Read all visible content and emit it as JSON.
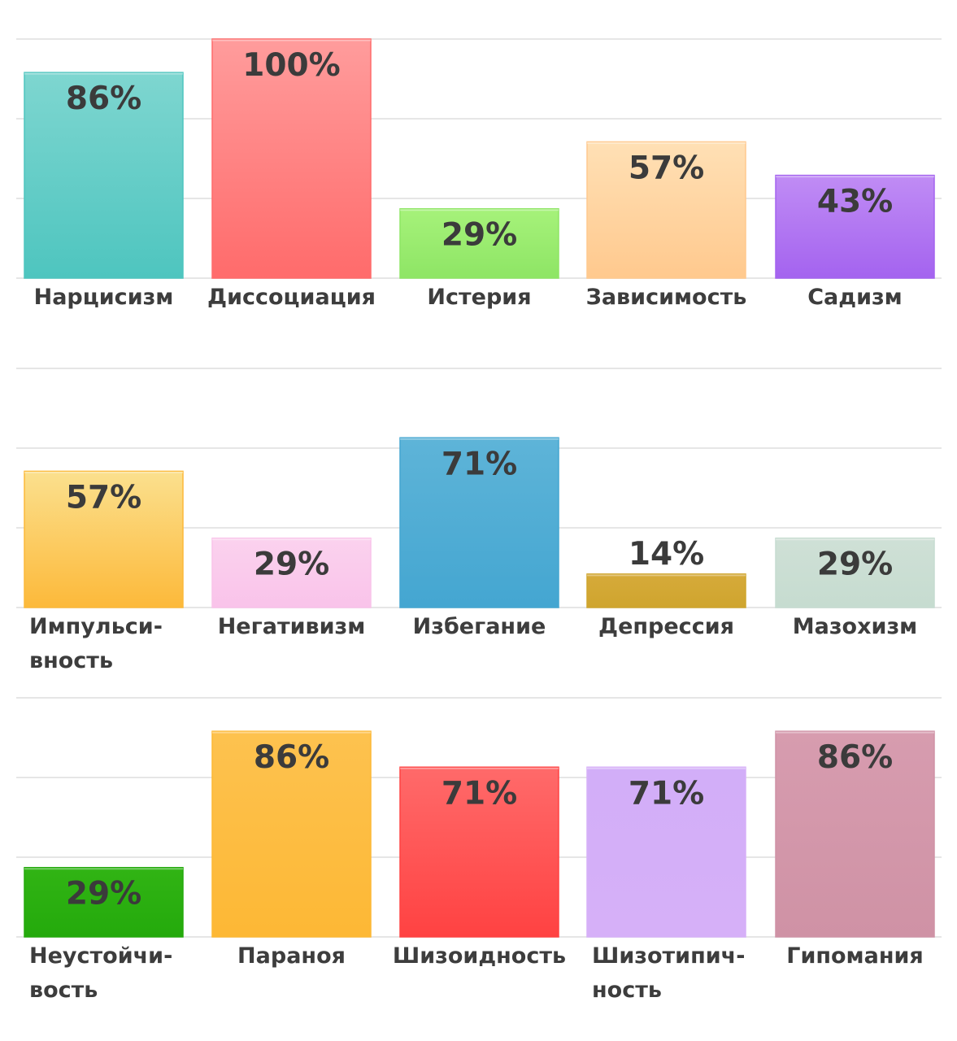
{
  "chart_data": [
    {
      "type": "bar",
      "ylim": [
        0,
        100
      ],
      "grid": true,
      "categories": [
        [
          "Нарцисизм"
        ],
        [
          "Диссоциация"
        ],
        [
          "Истерия"
        ],
        [
          "Зависимость"
        ],
        [
          "Садизм"
        ]
      ],
      "values": [
        86,
        100,
        29,
        57,
        43
      ],
      "value_labels": [
        "86%",
        "100%",
        "29%",
        "57%",
        "43%"
      ],
      "colors": [
        [
          "#7ed6d0",
          "#4ec5bf"
        ],
        [
          "#ff9c9c",
          "#ff6b6b"
        ],
        [
          "#a6f27a",
          "#8ee565"
        ],
        [
          "#ffe0b5",
          "#ffc98e"
        ],
        [
          "#c08cf5",
          "#a463ef"
        ]
      ]
    },
    {
      "type": "bar",
      "ylim": [
        0,
        100
      ],
      "grid": true,
      "categories": [
        [
          "Импульси-",
          "вность"
        ],
        [
          "Негативизм"
        ],
        [
          "Избегание"
        ],
        [
          "Депрессия"
        ],
        [
          "Мазохизм"
        ]
      ],
      "values": [
        57,
        29,
        71,
        14,
        29
      ],
      "value_labels": [
        "57%",
        "29%",
        "71%",
        "14%",
        "29%"
      ],
      "colors": [
        [
          "#fbe08e",
          "#fcb93a"
        ],
        [
          "#fbd2ee",
          "#f9c3ea"
        ],
        [
          "#5eb4d8",
          "#44a6d1"
        ],
        [
          "#d6aa3a",
          "#cfa52e"
        ],
        [
          "#cfe0d6",
          "#c6dcd0"
        ]
      ]
    },
    {
      "type": "bar",
      "ylim": [
        0,
        100
      ],
      "grid": true,
      "categories": [
        [
          "Неустойчи-",
          "вость"
        ],
        [
          "Параноя"
        ],
        [
          "Шизоидность"
        ],
        [
          "Шизотипич-",
          "ность"
        ],
        [
          "Гипомания"
        ]
      ],
      "values": [
        29,
        86,
        71,
        71,
        86
      ],
      "value_labels": [
        "29%",
        "86%",
        "71%",
        "71%",
        "86%"
      ],
      "colors": [
        [
          "#31b414",
          "#24aa0c"
        ],
        [
          "#fdc24f",
          "#fdb835"
        ],
        [
          "#ff6a6a",
          "#ff4242"
        ],
        [
          "#d2aef8",
          "#d6b0f8"
        ],
        [
          "#d79caf",
          "#cf92a5"
        ]
      ]
    }
  ]
}
